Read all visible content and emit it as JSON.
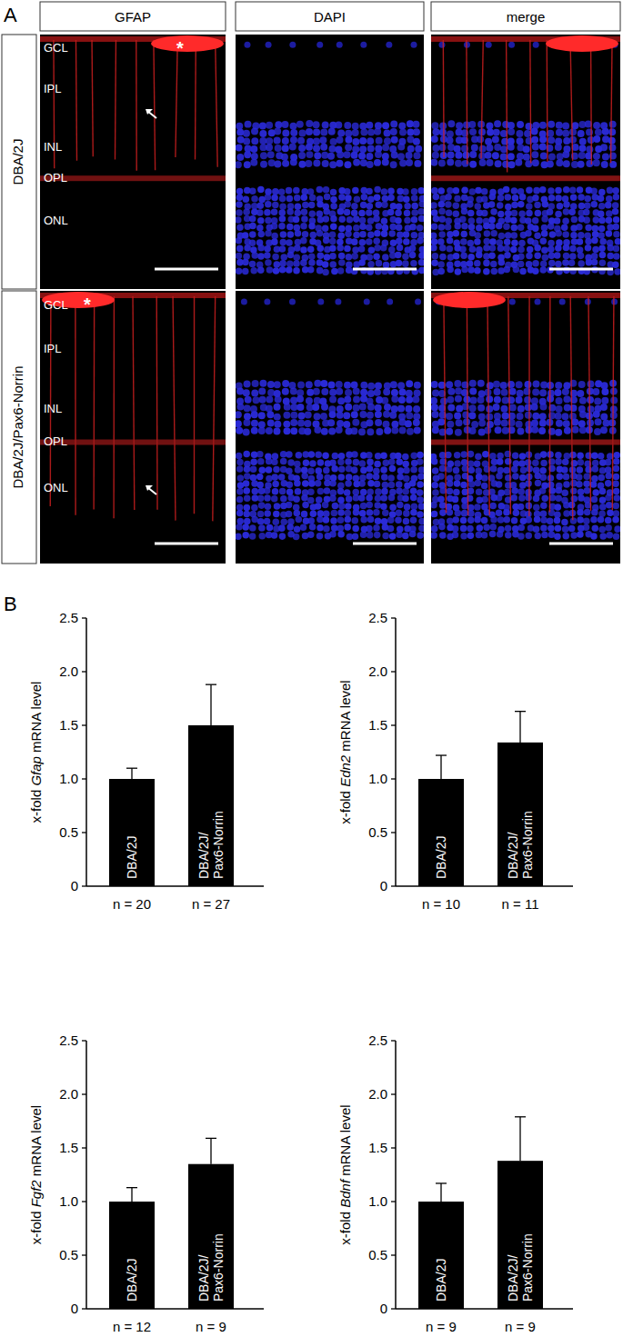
{
  "panel_labels": {
    "a": "A",
    "b": "B"
  },
  "panel_a": {
    "columns": [
      "GFAP",
      "DAPI",
      "merge"
    ],
    "rows": [
      "DBA/2J",
      "DBA/2J/Pax6-Norrin"
    ],
    "layers": [
      "GCL",
      "IPL",
      "INL",
      "OPL",
      "ONL"
    ],
    "asterisk": "*"
  },
  "chart_data": [
    {
      "type": "bar",
      "ylabel": "x-fold Gfap mRNA level",
      "categories": [
        "DBA/2J",
        "DBA/2J/Pax6-Norrin"
      ],
      "values": [
        1.0,
        1.5
      ],
      "errors": [
        0.1,
        0.38
      ],
      "n_labels": [
        "n = 20",
        "n = 27"
      ],
      "color": "#000000",
      "ylim": [
        0,
        2.5
      ],
      "yticks": [
        0,
        0.5,
        {
          "value": 1,
          "label": "1.0"
        },
        1.5,
        {
          "value": 2,
          "label": "2.0"
        },
        2.5
      ]
    },
    {
      "type": "bar",
      "ylabel": "x-fold Edn2 mRNA level",
      "categories": [
        "DBA/2J",
        "DBA/2J/Pax6-Norrin"
      ],
      "values": [
        1.0,
        1.34
      ],
      "errors": [
        0.22,
        0.29
      ],
      "n_labels": [
        "n = 10",
        "n = 11"
      ],
      "color": "#000000",
      "ylim": [
        0,
        2.5
      ],
      "yticks": [
        0,
        0.5,
        {
          "value": 1,
          "label": "1.0"
        },
        1.5,
        {
          "value": 2,
          "label": "2.0"
        },
        2.5
      ]
    },
    {
      "type": "bar",
      "ylabel": "x-fold Fgf2 mRNA level",
      "categories": [
        "DBA/2J",
        "DBA/2J/Pax6-Norrin"
      ],
      "values": [
        1.0,
        1.35
      ],
      "errors": [
        0.13,
        0.24
      ],
      "n_labels": [
        "n = 12",
        "n = 9"
      ],
      "color": "#000000",
      "ylim": [
        0,
        2.5
      ],
      "yticks": [
        0,
        0.5,
        {
          "value": 1,
          "label": "1.0"
        },
        1.5,
        {
          "value": 2,
          "label": "2.0"
        },
        2.5
      ]
    },
    {
      "type": "bar",
      "ylabel": "x-fold Bdnf mRNA level",
      "categories": [
        "DBA/2J",
        "DBA/2J/Pax6-Norrin"
      ],
      "values": [
        1.0,
        1.38
      ],
      "errors": [
        0.17,
        0.41
      ],
      "n_labels": [
        "n = 9",
        "n = 9"
      ],
      "color": "#000000",
      "ylim": [
        0,
        2.5
      ],
      "yticks": [
        0,
        0.5,
        {
          "value": 1,
          "label": "1.0"
        },
        1.5,
        {
          "value": 2,
          "label": "2.0"
        },
        2.5
      ]
    }
  ]
}
